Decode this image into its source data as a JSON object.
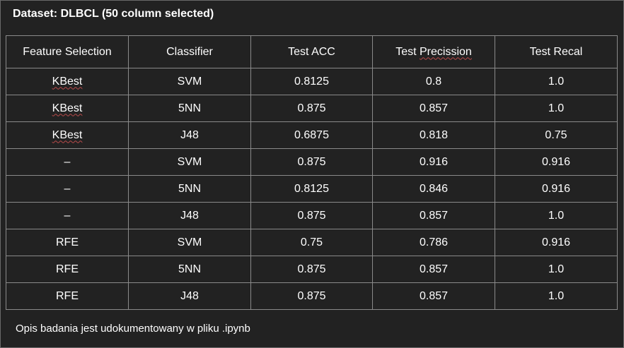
{
  "title": "Dataset: DLBCL (50 column selected)",
  "table": {
    "headers": [
      "Feature Selection",
      "Classifier",
      "Test ACC",
      "Test Precission",
      "Test Recal"
    ],
    "header_split": {
      "precision_prefix": "Test ",
      "precision_word": "Precission"
    },
    "rows": [
      [
        "KBest",
        "SVM",
        "0.8125",
        "0.8",
        "1.0"
      ],
      [
        "KBest",
        "5NN",
        "0.875",
        "0.857",
        "1.0"
      ],
      [
        "KBest",
        "J48",
        "0.6875",
        "0.818",
        "0.75"
      ],
      [
        "–",
        "SVM",
        "0.875",
        "0.916",
        "0.916"
      ],
      [
        "–",
        "5NN",
        "0.8125",
        "0.846",
        "0.916"
      ],
      [
        "–",
        "J48",
        "0.875",
        "0.857",
        "1.0"
      ],
      [
        "RFE",
        "SVM",
        "0.75",
        "0.786",
        "0.916"
      ],
      [
        "RFE",
        "5NN",
        "0.875",
        "0.857",
        "1.0"
      ],
      [
        "RFE",
        "J48",
        "0.875",
        "0.857",
        "1.0"
      ]
    ]
  },
  "footer": "Opis badania jest udokumentowany w pliku .ipynb"
}
